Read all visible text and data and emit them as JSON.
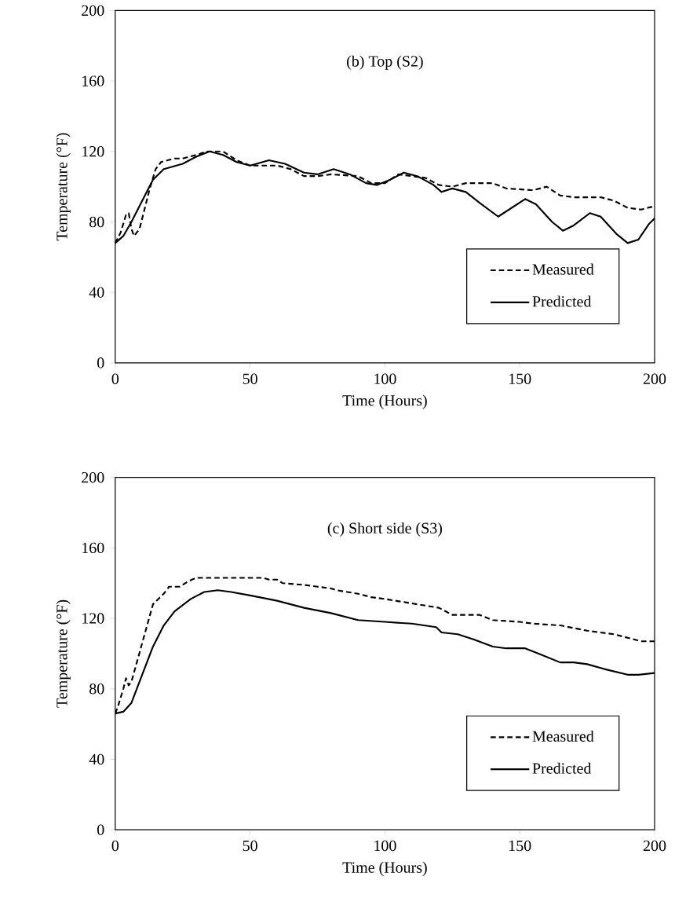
{
  "chart_data": [
    {
      "type": "line",
      "title": "(b) Top (S2)",
      "xlabel": "Time (Hours)",
      "ylabel": "Temperature (°F)",
      "xlim": [
        0,
        200
      ],
      "ylim": [
        0,
        200
      ],
      "xticks": [
        0,
        50,
        100,
        150,
        200
      ],
      "yticks": [
        0,
        40,
        80,
        120,
        160,
        200
      ],
      "legend": "bottom right",
      "series": [
        {
          "name": "Measured",
          "color": "#000000",
          "line_style": "dashed",
          "x": [
            0,
            2,
            4,
            5,
            6,
            7,
            9,
            11,
            13,
            15,
            17,
            22,
            25,
            30,
            34,
            40,
            45,
            50,
            60,
            65,
            70,
            75,
            80,
            90,
            95,
            100,
            105,
            110,
            115,
            120,
            125,
            130,
            140,
            145,
            155,
            160,
            165,
            170,
            180,
            185,
            190,
            195,
            200
          ],
          "values": [
            68,
            74,
            84,
            85,
            76,
            72,
            76,
            88,
            100,
            110,
            114,
            116,
            116,
            118,
            120,
            120,
            115,
            112,
            112,
            110,
            106,
            106,
            107,
            106,
            102,
            102,
            107,
            106,
            105,
            101,
            100,
            102,
            102,
            99,
            98,
            100,
            95,
            94,
            94,
            92,
            88,
            87,
            89
          ]
        },
        {
          "name": "Predicted",
          "color": "#000000",
          "line_style": "solid",
          "x": [
            0,
            3,
            6,
            10,
            14,
            18,
            25,
            30,
            35,
            40,
            45,
            50,
            57,
            63,
            70,
            75,
            81,
            87,
            93,
            97,
            102,
            107,
            112,
            118,
            121,
            125,
            130,
            135,
            142,
            146,
            152,
            156,
            162,
            166,
            170,
            176,
            180,
            186,
            190,
            194,
            198,
            200
          ],
          "values": [
            68,
            72,
            80,
            92,
            104,
            110,
            113,
            117,
            120,
            118,
            114,
            112,
            115,
            113,
            108,
            107,
            110,
            107,
            102,
            101,
            104,
            108,
            106,
            101,
            97,
            99,
            97,
            91,
            83,
            87,
            93,
            90,
            80,
            75,
            78,
            85,
            83,
            73,
            68,
            70,
            79,
            82
          ]
        }
      ]
    },
    {
      "type": "line",
      "title": "(c) Short side (S3)",
      "xlabel": "Time (Hours)",
      "ylabel": "Temperature (°F)",
      "xlim": [
        0,
        200
      ],
      "ylim": [
        0,
        200
      ],
      "xticks": [
        0,
        50,
        100,
        150,
        200
      ],
      "yticks": [
        0,
        40,
        80,
        120,
        160,
        200
      ],
      "legend": "bottom right",
      "series": [
        {
          "name": "Measured",
          "color": "#000000",
          "line_style": "dashed",
          "x": [
            0,
            1,
            3,
            4,
            5,
            6,
            8,
            10,
            12,
            14,
            18,
            20,
            24,
            27,
            30,
            40,
            50,
            55,
            57,
            60,
            62,
            70,
            75,
            80,
            82,
            90,
            95,
            100,
            108,
            112,
            120,
            125,
            135,
            140,
            150,
            155,
            165,
            175,
            185,
            190,
            195,
            200
          ],
          "values": [
            66,
            70,
            80,
            86,
            82,
            84,
            95,
            106,
            117,
            128,
            134,
            138,
            138,
            141,
            143,
            143,
            143,
            143,
            142,
            142,
            140,
            139,
            138,
            137,
            136,
            134,
            132,
            131,
            129,
            128,
            126,
            122,
            122,
            119,
            118,
            117,
            116,
            113,
            111,
            109,
            107,
            107
          ]
        },
        {
          "name": "Predicted",
          "color": "#000000",
          "line_style": "solid",
          "x": [
            0,
            3,
            6,
            10,
            14,
            18,
            22,
            28,
            33,
            38,
            43,
            50,
            60,
            70,
            80,
            90,
            100,
            110,
            119,
            121,
            127,
            133,
            140,
            145,
            152,
            157,
            165,
            170,
            175,
            182,
            190,
            194,
            200
          ],
          "values": [
            66,
            67,
            72,
            88,
            104,
            116,
            124,
            131,
            135,
            136,
            135,
            133,
            130,
            126,
            123,
            119,
            118,
            117,
            115,
            112,
            111,
            108,
            104,
            103,
            103,
            100,
            95,
            95,
            94,
            91,
            88,
            88,
            89
          ]
        }
      ]
    }
  ]
}
